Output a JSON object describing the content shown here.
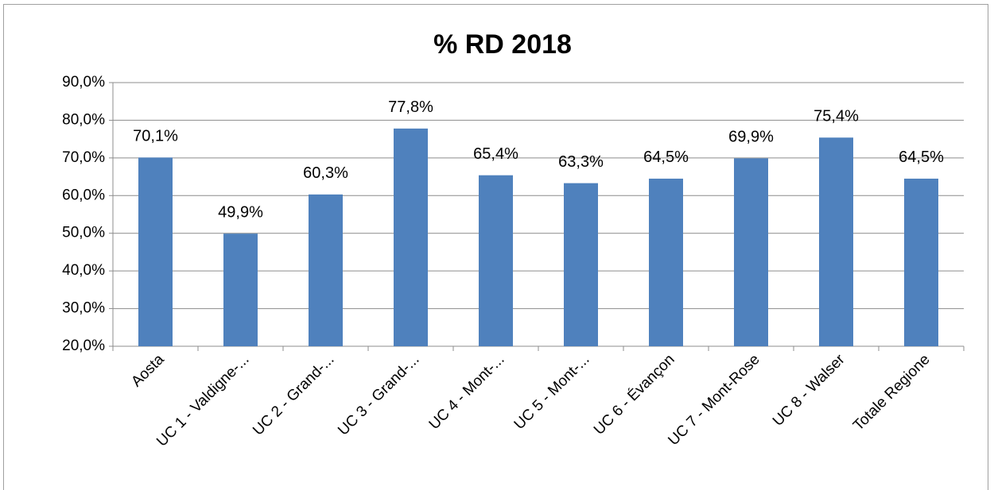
{
  "chart_data": {
    "type": "bar",
    "title": "% RD 2018",
    "categories": [
      "Aosta",
      "UC 1 - Valdigne-...",
      "UC 2 - Grand-...",
      "UC 3 - Grand-...",
      "UC 4 - Mont-...",
      "UC 5 - Mont-...",
      "UC 6 - Évançon",
      "UC 7 - Mont-Rose",
      "UC 8 - Walser",
      "Totale Regione"
    ],
    "values": [
      70.1,
      49.9,
      60.3,
      77.8,
      65.4,
      63.3,
      64.5,
      69.9,
      75.4,
      64.5
    ],
    "value_labels": [
      "70,1%",
      "49,9%",
      "60,3%",
      "77,8%",
      "65,4%",
      "63,3%",
      "64,5%",
      "69,9%",
      "75,4%",
      "64,5%"
    ],
    "color": "#4f81bd",
    "ylim": [
      20,
      90
    ],
    "yticks": [
      {
        "value": 20,
        "label": "20,0%"
      },
      {
        "value": 30,
        "label": "30,0%"
      },
      {
        "value": 40,
        "label": "40,0%"
      },
      {
        "value": 50,
        "label": "50,0%"
      },
      {
        "value": 60,
        "label": "60,0%"
      },
      {
        "value": 70,
        "label": "70,0%"
      },
      {
        "value": 80,
        "label": "80,0%"
      },
      {
        "value": 90,
        "label": "90,0%"
      }
    ],
    "grid": true
  }
}
